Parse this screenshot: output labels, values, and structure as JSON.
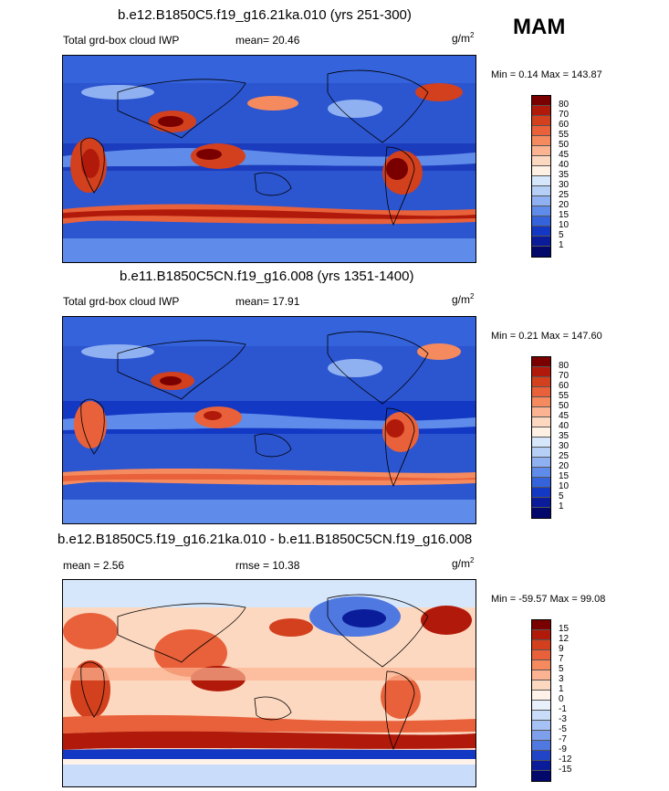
{
  "season": "MAM",
  "panels": [
    {
      "title": "b.e12.B1850C5.f19_g16.21ka.010 (yrs 251-300)",
      "left_label": "Total grd-box cloud IWP",
      "mean": "mean=  20.46",
      "units": "g/m",
      "units_sup": "2",
      "minmax": "Min =   0.14 Max = 143.87",
      "ticks": [
        "80",
        "70",
        "60",
        "55",
        "50",
        "45",
        "40",
        "35",
        "30",
        "25",
        "20",
        "15",
        "10",
        "5",
        "1"
      ]
    },
    {
      "title": "b.e11.B1850C5CN.f19_g16.008 (yrs 1351-1400)",
      "left_label": "Total grd-box cloud IWP",
      "mean": "mean=  17.91",
      "units": "g/m",
      "units_sup": "2",
      "minmax": "Min =   0.21 Max = 147.60",
      "ticks": [
        "80",
        "70",
        "60",
        "55",
        "50",
        "45",
        "40",
        "35",
        "30",
        "25",
        "20",
        "15",
        "10",
        "5",
        "1"
      ]
    },
    {
      "title": "b.e12.B1850C5.f19_g16.21ka.010 - b.e11.B1850C5CN.f19_g16.008",
      "left_label": "mean =   2.56",
      "mean": "rmse =  10.38",
      "units": "g/m",
      "units_sup": "2",
      "minmax": "Min = -59.57 Max =  99.08",
      "ticks": [
        "15",
        "12",
        "9",
        "7",
        "5",
        "3",
        "1",
        "0",
        "-1",
        "-3",
        "-5",
        "-7",
        "-9",
        "-12",
        "-15"
      ]
    }
  ],
  "colors": {
    "iwp": [
      "#7a0000",
      "#b11a0a",
      "#d2401e",
      "#e8613a",
      "#f58a5e",
      "#fbb392",
      "#fdd8c0",
      "#fff0e4",
      "#d6e6fb",
      "#b5cff7",
      "#8fb1f2",
      "#5f8cea",
      "#3463dc",
      "#1238c4",
      "#0a1c9a",
      "#03086b"
    ],
    "diff": [
      "#7a0000",
      "#b11a0a",
      "#d2401e",
      "#e8613a",
      "#f58a5e",
      "#fbb392",
      "#fdd8c0",
      "#fff2e8",
      "#e8f0fc",
      "#c9dcfa",
      "#a6c2f4",
      "#7ea0ec",
      "#4f78e0",
      "#2245c8",
      "#0a1c9a",
      "#03086b"
    ]
  }
}
